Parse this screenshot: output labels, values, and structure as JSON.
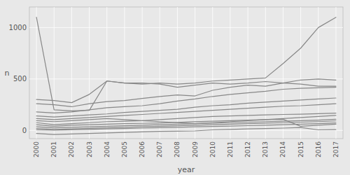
{
  "chart_data": {
    "type": "line",
    "x_label": "year",
    "y_label": "n",
    "color": "#888888",
    "grid": true,
    "x": [
      2000,
      2001,
      2002,
      2003,
      2004,
      2005,
      2006,
      2007,
      2008,
      2009,
      2010,
      2011,
      2012,
      2013,
      2014,
      2015,
      2016,
      2017
    ],
    "series": [
      {
        "values": [
          1100,
          200,
          190,
          195,
          480,
          460,
          450,
          460,
          450,
          460,
          480,
          490,
          500,
          510,
          650,
          800,
          1000,
          1100
        ]
      },
      {
        "values": [
          300,
          290,
          270,
          350,
          480,
          460,
          460,
          450,
          420,
          440,
          460,
          450,
          460,
          475,
          460,
          450,
          430,
          430
        ]
      },
      {
        "values": [
          260,
          250,
          230,
          260,
          280,
          290,
          310,
          330,
          345,
          335,
          390,
          420,
          440,
          430,
          460,
          490,
          500,
          490
        ]
      },
      {
        "values": [
          180,
          170,
          180,
          200,
          220,
          230,
          240,
          260,
          285,
          305,
          330,
          350,
          365,
          380,
          400,
          410,
          415,
          420
        ]
      },
      {
        "values": [
          140,
          130,
          140,
          150,
          160,
          175,
          185,
          195,
          205,
          225,
          240,
          250,
          265,
          275,
          285,
          295,
          305,
          315
        ]
      },
      {
        "values": [
          115,
          105,
          115,
          125,
          135,
          145,
          155,
          165,
          175,
          185,
          195,
          205,
          215,
          225,
          235,
          240,
          250,
          260
        ]
      },
      {
        "values": [
          95,
          85,
          95,
          105,
          115,
          105,
          95,
          85,
          75,
          65,
          75,
          85,
          95,
          105,
          115,
          125,
          135,
          145
        ]
      },
      {
        "values": [
          75,
          55,
          65,
          75,
          85,
          90,
          95,
          105,
          115,
          125,
          135,
          140,
          145,
          150,
          155,
          158,
          162,
          168
        ]
      },
      {
        "values": [
          55,
          40,
          50,
          55,
          60,
          65,
          68,
          72,
          78,
          84,
          90,
          95,
          100,
          105,
          108,
          40,
          50,
          60
        ]
      },
      {
        "values": [
          35,
          25,
          30,
          35,
          40,
          45,
          50,
          55,
          60,
          65,
          70,
          75,
          80,
          85,
          90,
          95,
          100,
          108
        ]
      },
      {
        "values": [
          18,
          10,
          15,
          20,
          25,
          30,
          35,
          40,
          45,
          50,
          55,
          60,
          65,
          70,
          75,
          80,
          85,
          92
        ]
      },
      {
        "values": [
          5,
          2,
          6,
          10,
          14,
          18,
          22,
          26,
          30,
          35,
          38,
          42,
          46,
          50,
          55,
          60,
          65,
          72
        ]
      },
      {
        "values": [
          -30,
          -40,
          -35,
          -30,
          -25,
          -20,
          -15,
          -10,
          -8,
          -5,
          5,
          10,
          15,
          18,
          22,
          28,
          5,
          8
        ]
      }
    ],
    "xlim": [
      1999.6,
      2017.4
    ],
    "xticks": [
      2000,
      2001,
      2002,
      2003,
      2004,
      2005,
      2006,
      2007,
      2008,
      2009,
      2010,
      2011,
      2012,
      2013,
      2014,
      2015,
      2016,
      2017
    ],
    "ylim": [
      -80,
      1200
    ],
    "yticks": [
      0,
      500,
      1000
    ]
  }
}
